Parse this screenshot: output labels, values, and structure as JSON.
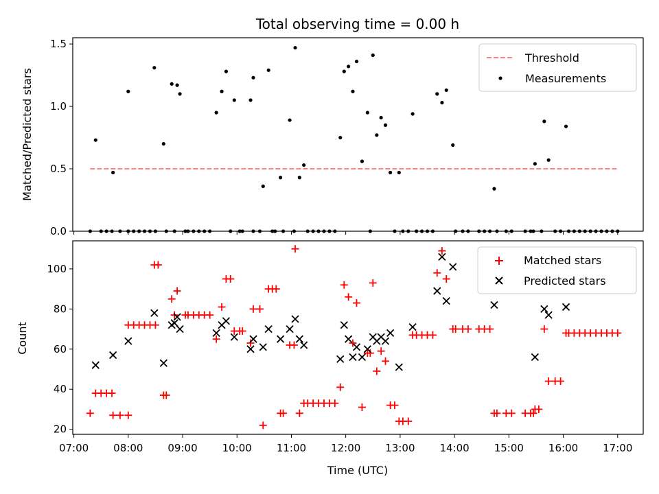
{
  "figure": {
    "title": "Total observing time = 0.00 h",
    "xlabel": "Time (UTC)",
    "xtick_labels": [
      "07:00",
      "08:00",
      "09:00",
      "10:00",
      "11:00",
      "12:00",
      "13:00",
      "14:00",
      "15:00",
      "16:00",
      "17:00"
    ]
  },
  "chart_data": [
    {
      "type": "scatter",
      "panel": "top",
      "ylabel": "Matched/Predicted stars",
      "ylim": [
        0,
        1.55
      ],
      "yticks": [
        "0.0",
        "0.5",
        "1.0",
        "1.5"
      ],
      "xlim_hours": [
        6.98,
        17.47
      ],
      "legend": {
        "placement": "upper right",
        "threshold_label": "Threshold",
        "measurements_label": "Measurements"
      },
      "threshold": {
        "value": 0.5,
        "x_hours": [
          7.3,
          17.0
        ],
        "color": "#ff8080"
      },
      "measurements_color": "#000000",
      "measurements": [
        [
          7.3,
          0
        ],
        [
          7.4,
          0.73
        ],
        [
          7.5,
          0
        ],
        [
          7.6,
          0
        ],
        [
          7.7,
          0
        ],
        [
          7.72,
          0.47
        ],
        [
          7.85,
          0
        ],
        [
          8.0,
          1.12
        ],
        [
          8.0,
          0
        ],
        [
          8.1,
          0
        ],
        [
          8.2,
          0
        ],
        [
          8.3,
          0
        ],
        [
          8.4,
          0
        ],
        [
          8.48,
          1.31
        ],
        [
          8.5,
          0
        ],
        [
          8.65,
          0.7
        ],
        [
          8.7,
          0
        ],
        [
          8.8,
          1.18
        ],
        [
          8.85,
          0
        ],
        [
          8.9,
          1.17
        ],
        [
          8.95,
          1.1
        ],
        [
          9.05,
          0
        ],
        [
          9.1,
          0
        ],
        [
          9.2,
          0
        ],
        [
          9.3,
          0
        ],
        [
          9.4,
          0
        ],
        [
          9.5,
          0
        ],
        [
          9.62,
          0.95
        ],
        [
          9.72,
          1.12
        ],
        [
          9.8,
          1.28
        ],
        [
          9.88,
          0
        ],
        [
          9.95,
          1.05
        ],
        [
          10.05,
          0
        ],
        [
          10.1,
          0
        ],
        [
          10.25,
          1.05
        ],
        [
          10.3,
          1.23
        ],
        [
          10.3,
          0
        ],
        [
          10.42,
          0
        ],
        [
          10.48,
          0.36
        ],
        [
          10.58,
          1.29
        ],
        [
          10.65,
          0
        ],
        [
          10.7,
          0
        ],
        [
          10.8,
          0.43
        ],
        [
          10.85,
          0
        ],
        [
          10.97,
          0.89
        ],
        [
          11.05,
          0
        ],
        [
          11.07,
          1.47
        ],
        [
          11.15,
          0.43
        ],
        [
          11.23,
          0.53
        ],
        [
          11.3,
          0
        ],
        [
          11.4,
          0
        ],
        [
          11.5,
          0
        ],
        [
          11.6,
          0
        ],
        [
          11.7,
          0
        ],
        [
          11.8,
          0
        ],
        [
          11.9,
          0.75
        ],
        [
          11.97,
          1.28
        ],
        [
          12.05,
          1.32
        ],
        [
          12.13,
          1.12
        ],
        [
          12.2,
          1.36
        ],
        [
          12.3,
          0.56
        ],
        [
          12.4,
          0.95
        ],
        [
          12.45,
          0
        ],
        [
          12.5,
          1.41
        ],
        [
          12.57,
          0.77
        ],
        [
          12.65,
          0.91
        ],
        [
          12.73,
          0.85
        ],
        [
          12.82,
          0.47
        ],
        [
          12.9,
          0
        ],
        [
          12.98,
          0.47
        ],
        [
          13.05,
          0
        ],
        [
          13.15,
          0
        ],
        [
          13.23,
          0.94
        ],
        [
          13.3,
          0
        ],
        [
          13.4,
          0
        ],
        [
          13.5,
          0
        ],
        [
          13.6,
          0
        ],
        [
          13.68,
          1.1
        ],
        [
          13.77,
          1.03
        ],
        [
          13.85,
          1.13
        ],
        [
          13.97,
          0.69
        ],
        [
          14.02,
          0
        ],
        [
          14.15,
          0
        ],
        [
          14.25,
          0
        ],
        [
          14.45,
          0
        ],
        [
          14.55,
          0
        ],
        [
          14.65,
          0
        ],
        [
          14.73,
          0.34
        ],
        [
          14.78,
          0
        ],
        [
          14.95,
          0
        ],
        [
          15.05,
          0
        ],
        [
          15.3,
          0
        ],
        [
          15.4,
          0
        ],
        [
          15.45,
          0
        ],
        [
          15.48,
          0.54
        ],
        [
          15.6,
          0
        ],
        [
          15.65,
          0.88
        ],
        [
          15.73,
          0.57
        ],
        [
          15.85,
          0
        ],
        [
          15.95,
          0
        ],
        [
          16.05,
          0.84
        ],
        [
          16.1,
          0
        ],
        [
          16.2,
          0
        ],
        [
          16.3,
          0
        ],
        [
          16.4,
          0
        ],
        [
          16.5,
          0
        ],
        [
          16.6,
          0
        ],
        [
          16.7,
          0
        ],
        [
          16.8,
          0
        ],
        [
          16.9,
          0
        ],
        [
          17.0,
          0
        ]
      ]
    },
    {
      "type": "scatter",
      "panel": "bottom",
      "ylabel": "Count",
      "ylim": [
        17.5,
        114
      ],
      "yticks": [
        "20",
        "40",
        "60",
        "80",
        "100"
      ],
      "xlim_hours": [
        6.98,
        17.47
      ],
      "legend": {
        "placement": "upper right"
      },
      "series": [
        {
          "name": "Matched stars",
          "marker": "plus",
          "color": "#ff0000",
          "points": [
            [
              7.3,
              28
            ],
            [
              7.4,
              38
            ],
            [
              7.5,
              38
            ],
            [
              7.6,
              38
            ],
            [
              7.7,
              38
            ],
            [
              7.72,
              27
            ],
            [
              7.85,
              27
            ],
            [
              8.0,
              72
            ],
            [
              8.0,
              27
            ],
            [
              8.1,
              72
            ],
            [
              8.2,
              72
            ],
            [
              8.3,
              72
            ],
            [
              8.4,
              72
            ],
            [
              8.48,
              102
            ],
            [
              8.5,
              72
            ],
            [
              8.55,
              102
            ],
            [
              8.65,
              37
            ],
            [
              8.7,
              37
            ],
            [
              8.8,
              85
            ],
            [
              8.85,
              77
            ],
            [
              8.9,
              89
            ],
            [
              9.05,
              77
            ],
            [
              9.1,
              77
            ],
            [
              9.2,
              77
            ],
            [
              9.3,
              77
            ],
            [
              9.4,
              77
            ],
            [
              9.5,
              77
            ],
            [
              9.62,
              65
            ],
            [
              9.72,
              81
            ],
            [
              9.8,
              95
            ],
            [
              9.88,
              95
            ],
            [
              9.95,
              69
            ],
            [
              10.05,
              69
            ],
            [
              10.1,
              69
            ],
            [
              10.25,
              63
            ],
            [
              10.3,
              80
            ],
            [
              10.42,
              80
            ],
            [
              10.48,
              22
            ],
            [
              10.58,
              90
            ],
            [
              10.65,
              90
            ],
            [
              10.72,
              90
            ],
            [
              10.8,
              28
            ],
            [
              10.85,
              28
            ],
            [
              10.97,
              62
            ],
            [
              11.05,
              62
            ],
            [
              11.07,
              110
            ],
            [
              11.15,
              28
            ],
            [
              11.23,
              33
            ],
            [
              11.3,
              33
            ],
            [
              11.4,
              33
            ],
            [
              11.5,
              33
            ],
            [
              11.6,
              33
            ],
            [
              11.7,
              33
            ],
            [
              11.8,
              33
            ],
            [
              11.9,
              41
            ],
            [
              11.97,
              92
            ],
            [
              12.05,
              86
            ],
            [
              12.13,
              63
            ],
            [
              12.2,
              83
            ],
            [
              12.3,
              31
            ],
            [
              12.4,
              58
            ],
            [
              12.45,
              58
            ],
            [
              12.5,
              93
            ],
            [
              12.57,
              49
            ],
            [
              12.65,
              59
            ],
            [
              12.73,
              54
            ],
            [
              12.82,
              32
            ],
            [
              12.9,
              32
            ],
            [
              12.98,
              24
            ],
            [
              13.05,
              24
            ],
            [
              13.15,
              24
            ],
            [
              13.23,
              67
            ],
            [
              13.3,
              67
            ],
            [
              13.4,
              67
            ],
            [
              13.5,
              67
            ],
            [
              13.6,
              67
            ],
            [
              13.68,
              98
            ],
            [
              13.77,
              109
            ],
            [
              13.85,
              95
            ],
            [
              13.97,
              70
            ],
            [
              14.02,
              70
            ],
            [
              14.15,
              70
            ],
            [
              14.25,
              70
            ],
            [
              14.45,
              70
            ],
            [
              14.55,
              70
            ],
            [
              14.65,
              70
            ],
            [
              14.73,
              28
            ],
            [
              14.78,
              28
            ],
            [
              14.95,
              28
            ],
            [
              15.05,
              28
            ],
            [
              15.3,
              28
            ],
            [
              15.4,
              28
            ],
            [
              15.45,
              28
            ],
            [
              15.48,
              30
            ],
            [
              15.55,
              30
            ],
            [
              15.65,
              70
            ],
            [
              15.73,
              44
            ],
            [
              15.85,
              44
            ],
            [
              15.95,
              44
            ],
            [
              16.05,
              68
            ],
            [
              16.1,
              68
            ],
            [
              16.2,
              68
            ],
            [
              16.3,
              68
            ],
            [
              16.4,
              68
            ],
            [
              16.5,
              68
            ],
            [
              16.6,
              68
            ],
            [
              16.7,
              68
            ],
            [
              16.8,
              68
            ],
            [
              16.9,
              68
            ],
            [
              17.0,
              68
            ]
          ]
        },
        {
          "name": "Predicted stars",
          "marker": "x",
          "color": "#000000",
          "points": [
            [
              7.4,
              52
            ],
            [
              7.72,
              57
            ],
            [
              8.0,
              64
            ],
            [
              8.48,
              78
            ],
            [
              8.65,
              53
            ],
            [
              8.8,
              72
            ],
            [
              8.85,
              73
            ],
            [
              8.9,
              76
            ],
            [
              8.95,
              70
            ],
            [
              9.62,
              68
            ],
            [
              9.72,
              72
            ],
            [
              9.8,
              74
            ],
            [
              9.95,
              66
            ],
            [
              10.25,
              60
            ],
            [
              10.3,
              65
            ],
            [
              10.48,
              61
            ],
            [
              10.58,
              70
            ],
            [
              10.8,
              65
            ],
            [
              10.97,
              70
            ],
            [
              11.07,
              75
            ],
            [
              11.15,
              65
            ],
            [
              11.23,
              62
            ],
            [
              11.9,
              55
            ],
            [
              11.97,
              72
            ],
            [
              12.05,
              65
            ],
            [
              12.13,
              56
            ],
            [
              12.2,
              61
            ],
            [
              12.3,
              56
            ],
            [
              12.4,
              60
            ],
            [
              12.5,
              66
            ],
            [
              12.57,
              64
            ],
            [
              12.65,
              66
            ],
            [
              12.73,
              64
            ],
            [
              12.82,
              68
            ],
            [
              12.98,
              51
            ],
            [
              13.23,
              71
            ],
            [
              13.68,
              89
            ],
            [
              13.77,
              106
            ],
            [
              13.85,
              84
            ],
            [
              13.97,
              101
            ],
            [
              14.73,
              82
            ],
            [
              15.48,
              56
            ],
            [
              15.65,
              80
            ],
            [
              15.73,
              77
            ],
            [
              16.05,
              81
            ]
          ]
        }
      ]
    }
  ]
}
